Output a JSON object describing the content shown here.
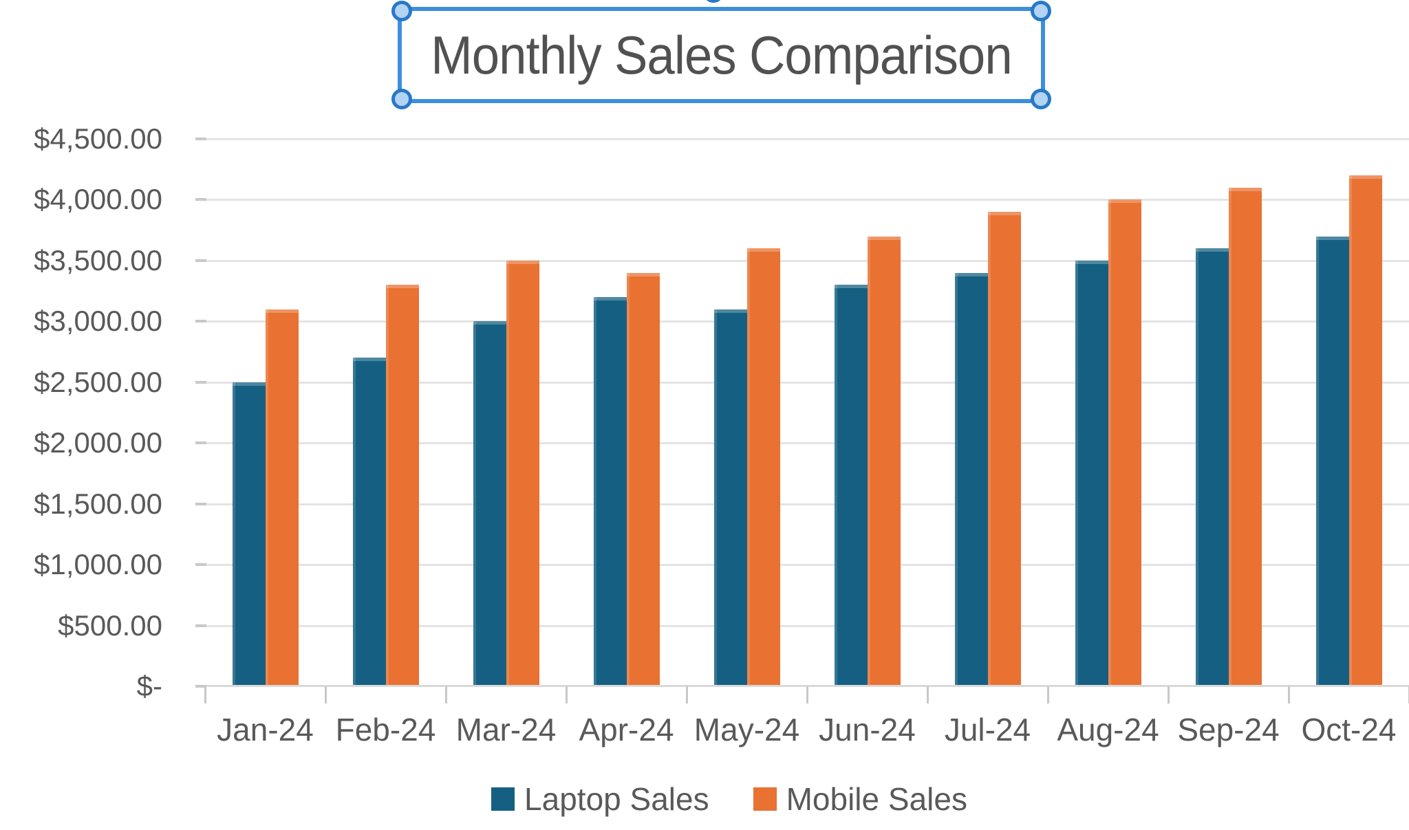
{
  "colors": {
    "laptop_series": "#156082",
    "mobile_series": "#E97132",
    "gridline": "#E4E4E4",
    "axis_line": "#D9D9D9",
    "tick": "#C8C8C8",
    "axis_label_text": "#595959",
    "title_text": "#515151",
    "selection_border": "#3F8EDC",
    "selection_handle_fill": "#B3D3F2",
    "selection_handle_ring": "#2778C8"
  },
  "chart_data": {
    "type": "bar",
    "title": "Monthly Sales Comparison",
    "title_selected": true,
    "categories": [
      "Jan-24",
      "Feb-24",
      "Mar-24",
      "Apr-24",
      "May-24",
      "Jun-24",
      "Jul-24",
      "Aug-24",
      "Sep-24",
      "Oct-24"
    ],
    "series": [
      {
        "name": "Laptop Sales",
        "color": "#156082",
        "values": [
          2500,
          2700,
          3000,
          3200,
          3100,
          3300,
          3400,
          3500,
          3600,
          3700
        ]
      },
      {
        "name": "Mobile Sales",
        "color": "#E97132",
        "values": [
          3100,
          3300,
          3500,
          3400,
          3600,
          3700,
          3900,
          4000,
          4100,
          4200
        ]
      }
    ],
    "xlabel": "",
    "ylabel": "",
    "ylim": [
      0,
      4500
    ],
    "ytick_step": 500,
    "ytick_labels": [
      "$-",
      "$500.00",
      "$1,000.00",
      "$1,500.00",
      "$2,000.00",
      "$2,500.00",
      "$3,000.00",
      "$3,500.00",
      "$4,000.00",
      "$4,500.00"
    ],
    "grid": true,
    "legend_position": "bottom"
  }
}
